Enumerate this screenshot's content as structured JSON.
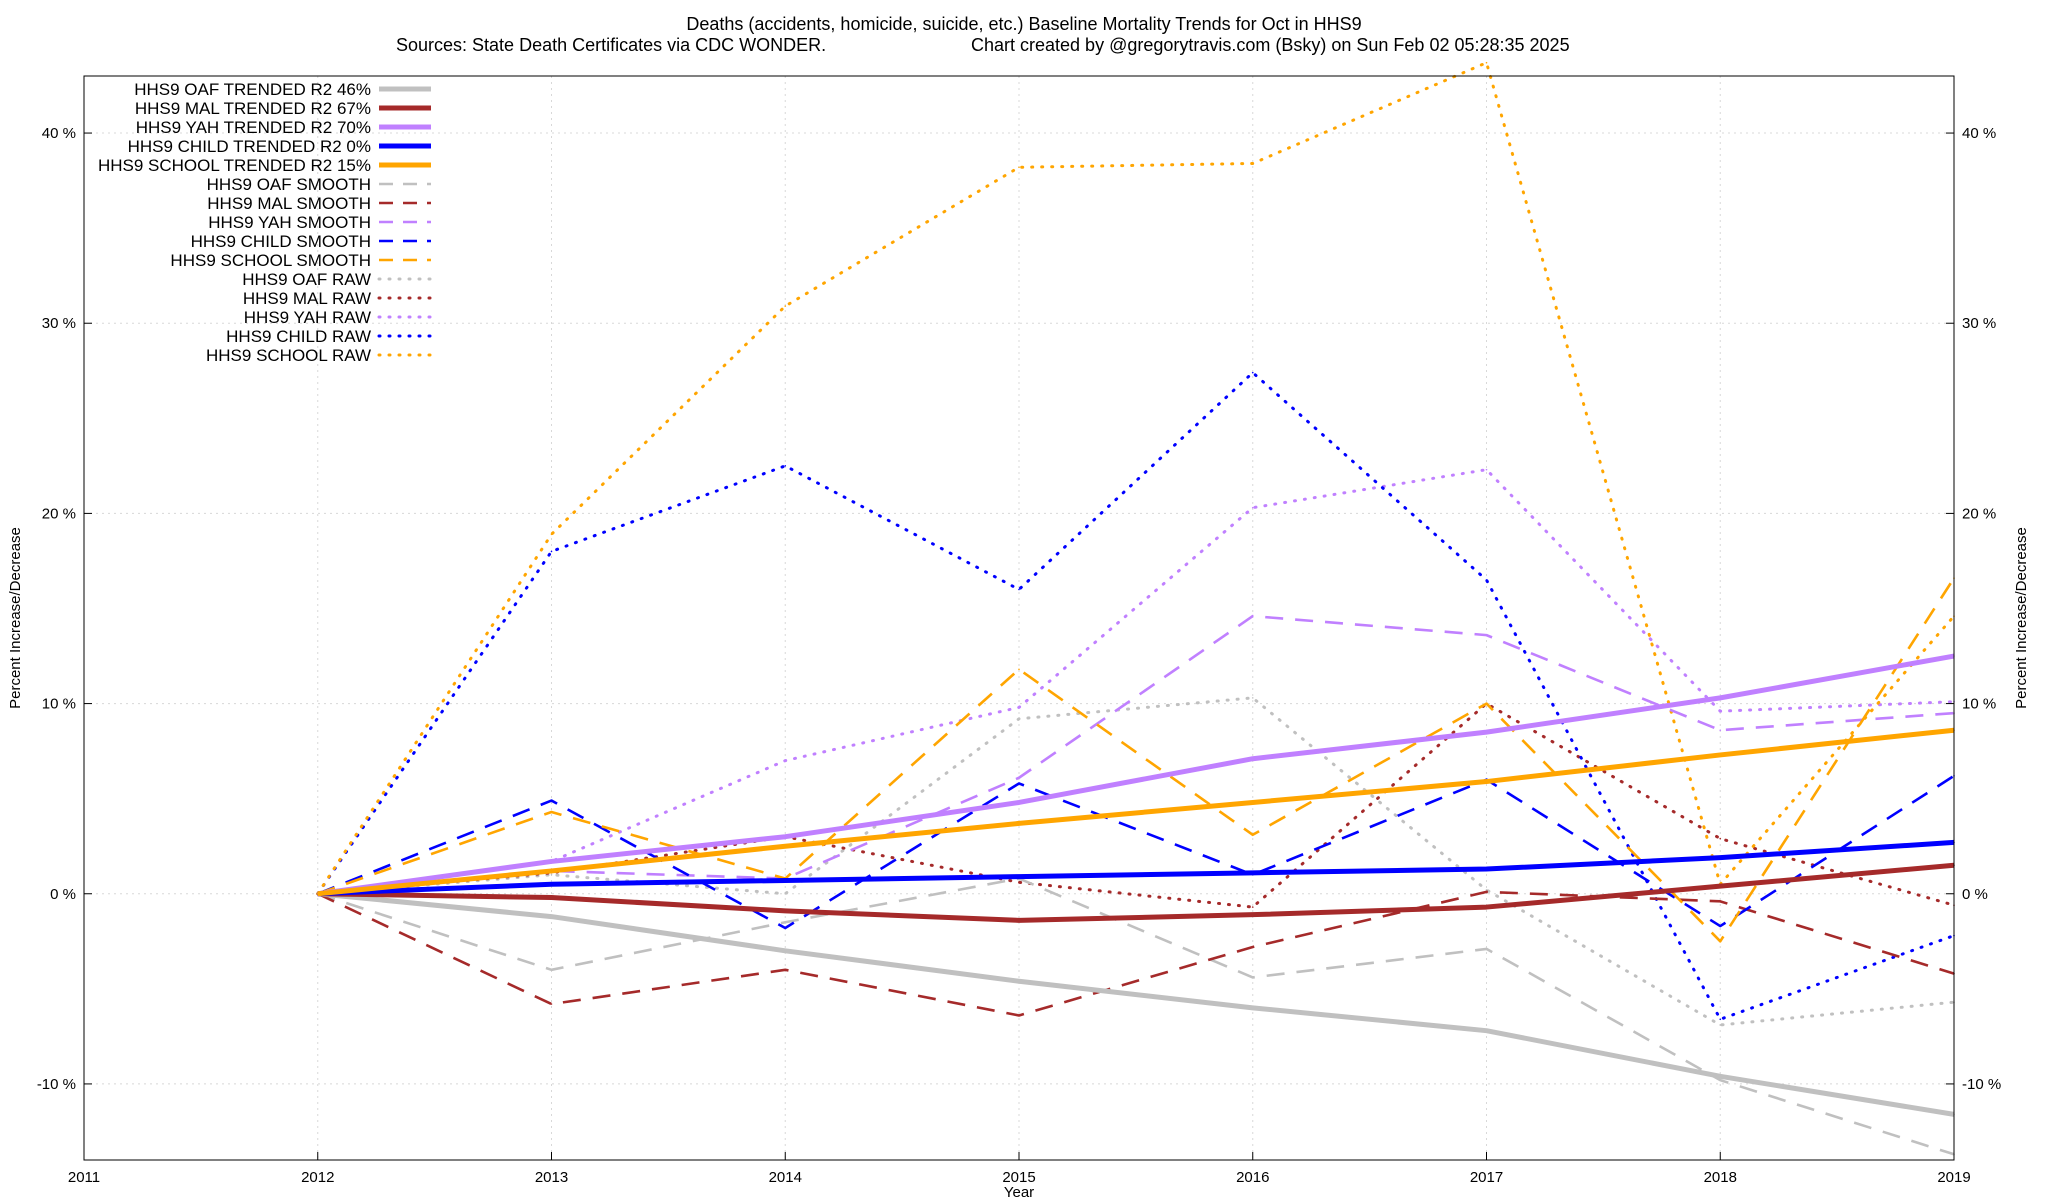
{
  "chart_data": {
    "type": "line",
    "title": "Deaths (accidents, homicide, suicide, etc.)  Baseline Mortality Trends for Oct in HHS9",
    "subtitle_left": "Sources: State Death Certificates via CDC WONDER.",
    "subtitle_right": "Chart created by @gregorytravis.com (Bsky) on Sun Feb 02 05:28:35 2025",
    "xlabel": "Year",
    "ylabel_left": "Percent Increase/Decrease",
    "ylabel_right": "Percent Increase/Decrease",
    "xlim": [
      2011,
      2019
    ],
    "ylim": [
      -14,
      43
    ],
    "grid": true,
    "legend_position": "top-left",
    "x_ticks": [
      "2011",
      "2012",
      "2013",
      "2014",
      "2015",
      "2016",
      "2017",
      "2018",
      "2019"
    ],
    "y_ticks": [
      {
        "value": -10,
        "label": "-10 %"
      },
      {
        "value": 0,
        "label": "0 %"
      },
      {
        "value": 10,
        "label": "10 %"
      },
      {
        "value": 20,
        "label": "20 %"
      },
      {
        "value": 30,
        "label": "30 %"
      },
      {
        "value": 40,
        "label": "40 %"
      }
    ],
    "x": [
      2012,
      2013,
      2014,
      2015,
      2016,
      2017,
      2018,
      2019
    ],
    "series": [
      {
        "name": "HHS9 OAF TRENDED R2  46%",
        "style": "trend",
        "color": "#c0c0c0",
        "values": [
          0,
          -1.2,
          -3.0,
          -4.6,
          -6.0,
          -7.2,
          -9.6,
          -11.6
        ]
      },
      {
        "name": "HHS9 MAL TRENDED R2  67%",
        "style": "trend",
        "color": "#a52a2a",
        "values": [
          0,
          -0.2,
          -0.9,
          -1.4,
          -1.1,
          -0.7,
          0.4,
          1.5
        ]
      },
      {
        "name": "HHS9 YAH TRENDED R2  70%",
        "style": "trend",
        "color": "#c080ff",
        "values": [
          0,
          1.7,
          3.0,
          4.8,
          7.1,
          8.5,
          10.3,
          12.5
        ]
      },
      {
        "name": "HHS9 CHILD TRENDED R2   0%",
        "style": "trend",
        "color": "#0000ff",
        "values": [
          0,
          0.5,
          0.7,
          0.9,
          1.1,
          1.3,
          1.9,
          2.7
        ]
      },
      {
        "name": "HHS9 SCHOOL TRENDED R2  15%",
        "style": "trend",
        "color": "#ffa500",
        "values": [
          0,
          1.2,
          2.5,
          3.7,
          4.8,
          5.9,
          7.3,
          8.6
        ]
      },
      {
        "name": "HHS9 OAF SMOOTH",
        "style": "smooth",
        "color": "#c0c0c0",
        "values": [
          0,
          -4.0,
          -1.5,
          0.8,
          -4.4,
          -2.9,
          -9.8,
          -13.7
        ]
      },
      {
        "name": "HHS9 MAL SMOOTH",
        "style": "smooth",
        "color": "#a52a2a",
        "values": [
          0,
          -5.8,
          -4.0,
          -6.4,
          -2.8,
          0.1,
          -0.4,
          -4.2
        ]
      },
      {
        "name": "HHS9 YAH SMOOTH",
        "style": "smooth",
        "color": "#c080ff",
        "values": [
          0,
          1.2,
          0.8,
          6.1,
          14.6,
          13.6,
          8.6,
          9.5
        ]
      },
      {
        "name": "HHS9 CHILD SMOOTH",
        "style": "smooth",
        "color": "#0000ff",
        "values": [
          0,
          4.9,
          -1.8,
          5.8,
          1.0,
          6.0,
          -1.7,
          6.2
        ]
      },
      {
        "name": "HHS9 SCHOOL SMOOTH",
        "style": "smooth",
        "color": "#ffa500",
        "values": [
          0,
          4.3,
          0.8,
          11.8,
          3.1,
          10.0,
          -2.5,
          16.6
        ]
      },
      {
        "name": "HHS9 OAF RAW",
        "style": "raw",
        "color": "#c0c0c0",
        "values": [
          0,
          1.0,
          0.0,
          9.2,
          10.3,
          0.2,
          -6.9,
          -5.7
        ]
      },
      {
        "name": "HHS9 MAL RAW",
        "style": "raw",
        "color": "#a52a2a",
        "values": [
          0,
          1.1,
          3.0,
          0.6,
          -0.7,
          10.0,
          2.9,
          -0.6
        ]
      },
      {
        "name": "HHS9 YAH RAW",
        "style": "raw",
        "color": "#c080ff",
        "values": [
          0,
          1.7,
          7.0,
          9.8,
          20.3,
          22.3,
          9.6,
          10.1
        ]
      },
      {
        "name": "HHS9 CHILD RAW",
        "style": "raw",
        "color": "#0000ff",
        "values": [
          0,
          18.0,
          22.5,
          16.0,
          27.4,
          16.5,
          -6.6,
          -2.2
        ]
      },
      {
        "name": "HHS9 SCHOOL RAW",
        "style": "raw",
        "color": "#ffa500",
        "values": [
          0,
          18.9,
          30.9,
          38.2,
          38.4,
          43.7,
          0.5,
          14.6
        ]
      }
    ]
  }
}
